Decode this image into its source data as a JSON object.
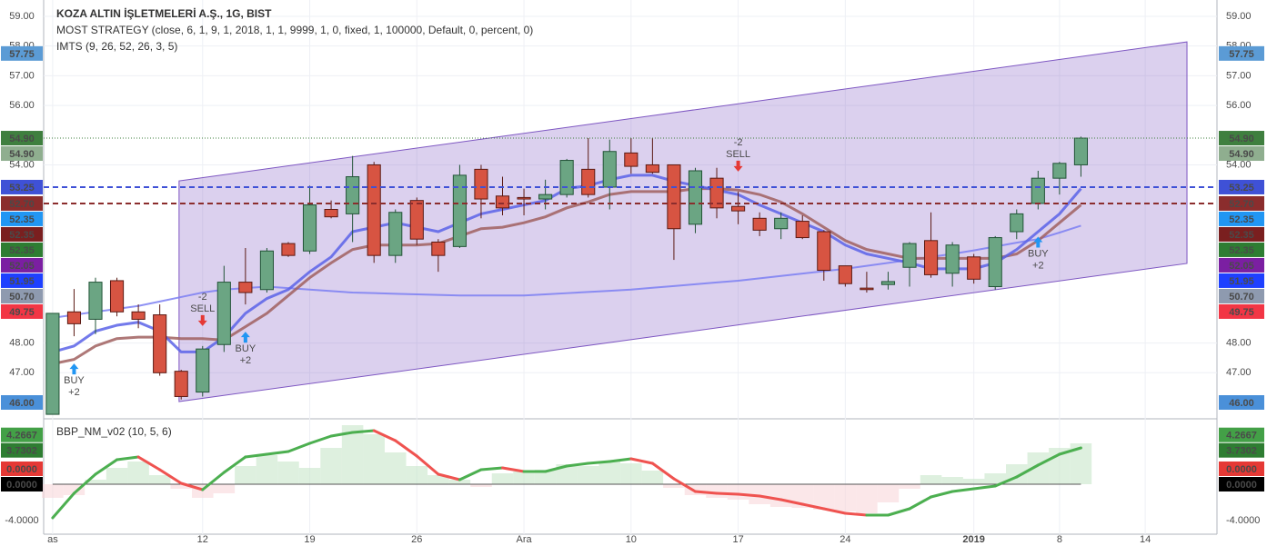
{
  "chart_data": [
    {
      "type": "candlestick",
      "title": "KOZA ALTIN İŞLETMELERİ A.Ş., 1G, BIST",
      "indicators": [
        "MOST STRATEGY (close, 6, 1, 9, 1, 2018, 1, 1, 9999, 1, 0, fixed, 1, 100000, Default, 0, percent, 0)",
        "IMTS (9, 26, 52, 26, 3, 5)"
      ],
      "xlim": [
        -0.42,
        54.35
      ],
      "xticks": [
        {
          "value": 0,
          "label": "as"
        },
        {
          "value": 7,
          "label": "12"
        },
        {
          "value": 12,
          "label": "19"
        },
        {
          "value": 17,
          "label": "26"
        },
        {
          "value": 22,
          "label": "Ara"
        },
        {
          "value": 27,
          "label": "10"
        },
        {
          "value": 32,
          "label": "17"
        },
        {
          "value": 37,
          "label": "24"
        },
        {
          "value": 43,
          "label": "2019"
        },
        {
          "value": 47,
          "label": "8"
        },
        {
          "value": 51,
          "label": "14"
        }
      ],
      "ylim": [
        45.48,
        59.55
      ],
      "yticks": [
        {
          "value": 59,
          "label": "59.00"
        },
        {
          "value": 58,
          "label": "58.00"
        },
        {
          "value": 57,
          "label": "57.00"
        },
        {
          "value": 56,
          "label": "56.00"
        },
        {
          "value": 54,
          "label": "54.00"
        },
        {
          "value": 48,
          "label": "48.00"
        },
        {
          "value": 47,
          "label": "47.00"
        }
      ],
      "grid": true,
      "up_color": "#6ba583",
      "down_color": "#d75442",
      "open": [
        45.6,
        49.05,
        48.8,
        50.1,
        49.05,
        48.95,
        47.05,
        46.35,
        47.95,
        50.05,
        49.8,
        51.35,
        51.1,
        52.5,
        52.35,
        54.0,
        50.95,
        52.8,
        51.4,
        51.25,
        53.85,
        52.95,
        52.9,
        52.85,
        53.0,
        53.85,
        53.25,
        54.4,
        54.0,
        54.0,
        52.0,
        53.55,
        52.6,
        52.2,
        51.85,
        52.1,
        51.75,
        50.6,
        49.85,
        49.97,
        50.55,
        51.45,
        50.35,
        50.9,
        49.9,
        51.75,
        52.7,
        53.55,
        54.0
      ],
      "high": [
        49.0,
        49.82,
        50.2,
        50.2,
        49.3,
        49.3,
        47.1,
        47.9,
        50.6,
        51.2,
        51.2,
        51.4,
        53.3,
        52.8,
        54.3,
        54.1,
        52.5,
        52.9,
        51.5,
        54.0,
        54.0,
        53.6,
        53.2,
        53.5,
        54.2,
        54.9,
        54.85,
        54.9,
        54.9,
        54.0,
        53.9,
        53.9,
        53.1,
        52.4,
        52.4,
        52.3,
        51.8,
        50.6,
        50.4,
        50.4,
        51.4,
        52.4,
        51.4,
        51.0,
        51.6,
        52.5,
        53.8,
        54.1,
        54.95
      ],
      "low": [
        45.6,
        48.23,
        48.3,
        48.9,
        48.5,
        46.9,
        46.1,
        46.2,
        47.7,
        49.3,
        49.7,
        50.9,
        51.0,
        52.2,
        51.4,
        50.7,
        50.7,
        51.3,
        50.4,
        51.2,
        52.2,
        52.3,
        52.3,
        52.5,
        52.9,
        52.9,
        52.5,
        53.7,
        53.7,
        50.8,
        51.7,
        52.2,
        52.0,
        51.6,
        51.5,
        51.5,
        50.1,
        49.9,
        49.7,
        49.8,
        49.9,
        50.2,
        49.9,
        50.0,
        49.8,
        51.5,
        52.5,
        53.0,
        53.6
      ],
      "close": [
        49.0,
        48.65,
        50.05,
        49.05,
        48.8,
        47.0,
        46.2,
        47.8,
        50.05,
        49.7,
        51.1,
        50.95,
        52.65,
        52.25,
        53.6,
        50.95,
        52.4,
        51.5,
        50.95,
        53.65,
        52.85,
        52.55,
        52.85,
        53.0,
        54.15,
        53.0,
        54.45,
        53.95,
        53.75,
        51.85,
        53.8,
        52.55,
        52.45,
        51.8,
        52.2,
        51.55,
        50.45,
        50.0,
        49.8,
        50.07,
        51.35,
        50.3,
        51.3,
        50.15,
        51.55,
        52.35,
        53.55,
        54.05,
        54.9
      ],
      "overlays": [
        {
          "color": "#7b7ff2",
          "values": [
            48.85,
            48.95,
            49.05,
            49.15,
            49.25,
            49.4,
            49.55,
            49.7,
            49.8,
            49.85,
            49.9,
            49.85,
            49.8,
            49.75,
            49.7,
            49.68,
            49.66,
            49.64,
            49.62,
            49.6,
            49.6,
            49.6,
            49.6,
            49.64,
            49.68,
            49.72,
            49.76,
            49.8,
            49.86,
            49.92,
            49.98,
            50.04,
            50.1,
            50.18,
            50.26,
            50.34,
            50.42,
            50.5,
            50.6,
            50.7,
            50.8,
            50.9,
            51.0,
            51.12,
            51.25,
            51.38,
            51.5,
            51.72,
            51.95
          ]
        },
        {
          "color": "#a0605f",
          "values": [
            47.3,
            47.45,
            47.9,
            48.15,
            48.2,
            48.2,
            48.15,
            48.15,
            48.1,
            48.55,
            49.0,
            49.6,
            50.2,
            50.7,
            51.15,
            51.3,
            51.3,
            51.3,
            51.35,
            51.6,
            51.85,
            51.9,
            52.05,
            52.25,
            52.55,
            52.75,
            53.0,
            53.1,
            53.1,
            53.1,
            53.2,
            53.2,
            53.15,
            53.0,
            52.75,
            52.35,
            51.9,
            51.45,
            51.15,
            51.0,
            50.85,
            50.85,
            50.85,
            50.85,
            50.85,
            51.0,
            51.45,
            52.05,
            52.65
          ]
        },
        {
          "color": "#5b63e8",
          "values": [
            47.7,
            47.9,
            48.4,
            48.6,
            48.7,
            48.4,
            47.7,
            47.7,
            48.2,
            49.0,
            49.5,
            49.8,
            50.4,
            50.9,
            51.75,
            51.9,
            52.05,
            51.9,
            51.75,
            52.05,
            52.35,
            52.5,
            52.65,
            52.8,
            53.2,
            53.3,
            53.5,
            53.65,
            53.65,
            53.45,
            53.3,
            53.15,
            53.0,
            52.65,
            52.35,
            52.05,
            51.75,
            51.3,
            51.0,
            50.85,
            50.7,
            50.5,
            50.5,
            50.5,
            50.7,
            51.15,
            51.75,
            52.35,
            53.2
          ]
        }
      ],
      "channel": {
        "color": "#7e57c2",
        "x": [
          5.9,
          52.95
        ],
        "upper": [
          53.46,
          58.14
        ],
        "lower": [
          46.03,
          50.68
        ]
      },
      "signals": [
        {
          "x": 1,
          "label": "BUY",
          "amount": "+2",
          "color": "#2196f3"
        },
        {
          "x": 7,
          "label": "SELL",
          "amount": "-2",
          "color": "#e53935"
        },
        {
          "x": 9,
          "label": "BUY",
          "amount": "+2",
          "color": "#2196f3"
        },
        {
          "x": 32,
          "label": "SELL",
          "amount": "-2",
          "color": "#e53935"
        },
        {
          "x": 46,
          "label": "BUY",
          "amount": "+2",
          "color": "#2196f3"
        }
      ],
      "price_labels": [
        {
          "value": 57.75,
          "label": "57.75",
          "color": "#5b9bd5"
        },
        {
          "value": 54.9,
          "label": "54.90",
          "color": "#3f7f3f",
          "line": "dotted"
        },
        {
          "value": 54.9,
          "label": "54.90",
          "color": "#8fae8f"
        },
        {
          "value": 53.25,
          "label": "53.25",
          "color": "#3f51d6",
          "line": "dashed"
        },
        {
          "value": 52.7,
          "label": "52.70",
          "color": "#8b2d2d",
          "line": "dashed"
        },
        {
          "value": 52.35,
          "label": "52.35",
          "color": "#2196f3"
        },
        {
          "value": 52.35,
          "label": "52.35",
          "color": "#7a1f1f"
        },
        {
          "value": 52.35,
          "label": "52.35",
          "color": "#2e7d32"
        },
        {
          "value": 52.05,
          "label": "52.05",
          "color": "#7b1fa2"
        },
        {
          "value": 51.95,
          "label": "51.95",
          "color": "#1e40ff"
        },
        {
          "value": 50.7,
          "label": "50.70",
          "color": "#8e9aaf"
        },
        {
          "value": 49.75,
          "label": "49.75",
          "color": "#f23645"
        },
        {
          "value": 46.0,
          "label": "46.00",
          "color": "#4a90d9"
        }
      ]
    },
    {
      "type": "oscillator",
      "title": "BBP_NM_v02 (10, 5, 6)",
      "ylim": [
        -5.5,
        7.1
      ],
      "yticks": [
        {
          "value": -4,
          "label": "-4.0000"
        }
      ],
      "up_color": "#4caf50",
      "down_color": "#ef5350",
      "values": [
        -3.7,
        -1.0,
        1.1,
        2.7,
        3.0,
        1.6,
        0.1,
        -0.6,
        1.3,
        3.0,
        3.3,
        3.6,
        4.5,
        5.3,
        5.7,
        5.9,
        4.8,
        3.1,
        1.1,
        0.5,
        1.6,
        1.8,
        1.4,
        1.4,
        2.0,
        2.3,
        2.5,
        2.8,
        2.3,
        0.6,
        -0.8,
        -1.0,
        -1.1,
        -1.3,
        -1.7,
        -2.2,
        -2.7,
        -3.2,
        -3.4,
        -3.4,
        -2.7,
        -1.4,
        -0.8,
        -0.5,
        -0.2,
        0.8,
        2.1,
        3.3,
        4.0
      ],
      "histogram": [
        -1.5,
        -1.2,
        0.5,
        1.8,
        2.5,
        1.0,
        -0.5,
        -1.5,
        -1.0,
        2.0,
        3.2,
        2.5,
        1.8,
        4.0,
        6.5,
        5.5,
        3.5,
        2.0,
        1.0,
        0.5,
        -0.3,
        1.2,
        1.4,
        1.6,
        2.2,
        2.0,
        2.5,
        2.3,
        1.5,
        -0.4,
        -1.2,
        -1.5,
        -1.7,
        -2.2,
        -2.5,
        -2.6,
        -2.8,
        -3.0,
        -3.2,
        -2.0,
        -0.5,
        1.0,
        0.8,
        0.6,
        1.2,
        2.2,
        3.5,
        4.0,
        4.5
      ],
      "price_labels": [
        {
          "value": 4.2667,
          "label": "4.2667",
          "color": "#43a047"
        },
        {
          "value": 3.7302,
          "label": "3.7302",
          "color": "#2e7d32"
        },
        {
          "value": 0,
          "label": "0.0000",
          "color": "#000000"
        },
        {
          "value": 0,
          "label": "0.0000",
          "color": "#e53935"
        }
      ]
    }
  ]
}
